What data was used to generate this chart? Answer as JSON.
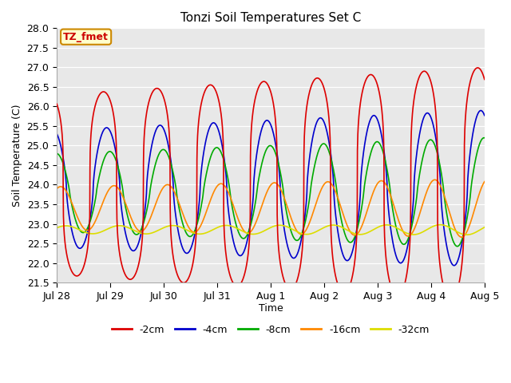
{
  "title": "Tonzi Soil Temperatures Set C",
  "xlabel": "Time",
  "ylabel": "Soil Temperature (C)",
  "ylim": [
    21.5,
    28.0
  ],
  "yticks": [
    21.5,
    22.0,
    22.5,
    23.0,
    23.5,
    24.0,
    24.5,
    25.0,
    25.5,
    26.0,
    26.5,
    27.0,
    27.5,
    28.0
  ],
  "colors": {
    "-2cm": "#dd0000",
    "-4cm": "#0000cc",
    "-8cm": "#00aa00",
    "-16cm": "#ff8800",
    "-32cm": "#dddd00"
  },
  "legend_labels": [
    "-2cm",
    "-4cm",
    "-8cm",
    "-16cm",
    "-32cm"
  ],
  "annotation_text": "TZ_fmet",
  "annotation_bg": "#ffffcc",
  "annotation_border": "#cc8800",
  "fig_bg": "#ffffff",
  "plot_bg": "#e8e8e8",
  "n_points": 2000,
  "t_start": 0,
  "t_end": 8,
  "depths": {
    "-2cm": {
      "mean": 24.0,
      "amp_start": 2.3,
      "amp_end": 3.0,
      "phase": 0.62,
      "sharpness": 3.5
    },
    "-4cm": {
      "mean": 23.9,
      "amp_start": 1.5,
      "amp_end": 2.0,
      "phase": 0.68,
      "sharpness": 1.5
    },
    "-8cm": {
      "mean": 23.8,
      "amp_start": 1.0,
      "amp_end": 1.4,
      "phase": 0.74,
      "sharpness": 1.2
    },
    "-16cm": {
      "mean": 23.4,
      "amp_start": 0.55,
      "amp_end": 0.75,
      "phase": 0.82,
      "sharpness": 1.0
    },
    "-32cm": {
      "mean": 22.85,
      "amp_start": 0.1,
      "amp_end": 0.13,
      "phase": 0.92,
      "sharpness": 1.0
    }
  },
  "xtick_positions": [
    0,
    1,
    2,
    3,
    4,
    5,
    6,
    7,
    8
  ],
  "xtick_labels": [
    "Jul 28",
    "Jul 29",
    "Jul 30",
    "Jul 31",
    "Aug 1",
    "Aug 2",
    "Aug 3",
    "Aug 4",
    "Aug 5"
  ]
}
